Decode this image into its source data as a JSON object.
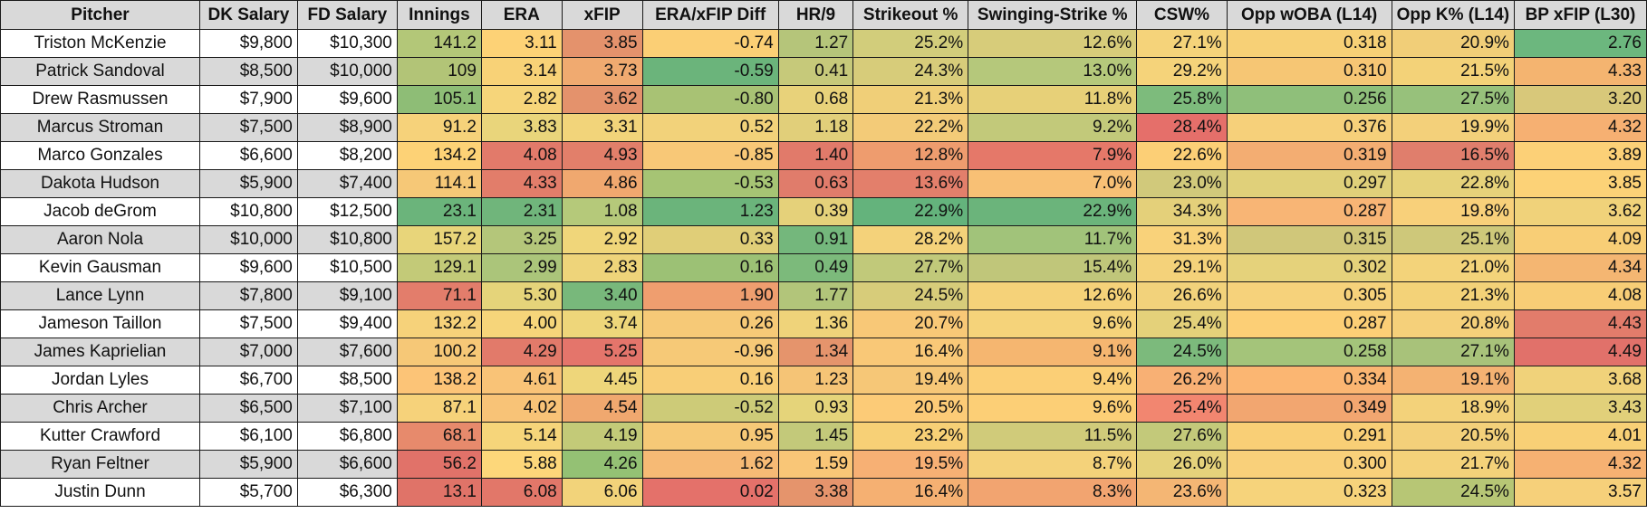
{
  "headers": [
    "Pitcher",
    "DK Salary",
    "FD Salary",
    "Innings",
    "ERA",
    "xFIP",
    "ERA/xFIP Diff",
    "HR/9",
    "Strikeout %",
    "Swinging-Strike %",
    "CSW%",
    "Opp wOBA (L14)",
    "Opp K% (L14)",
    "BP xFIP (L30)"
  ],
  "rows": [
    [
      "Triston McKenzie",
      "$9,800",
      "$10,300",
      "141.2",
      "3.11",
      "3.85",
      "-0.74",
      "1.27",
      "25.2%",
      "12.6%",
      "27.1%",
      "0.318",
      "20.9%",
      "2.76"
    ],
    [
      "Patrick Sandoval",
      "$8,500",
      "$10,000",
      "109",
      "3.14",
      "3.73",
      "-0.59",
      "0.41",
      "24.3%",
      "13.0%",
      "29.2%",
      "0.310",
      "21.5%",
      "4.33"
    ],
    [
      "Drew Rasmussen",
      "$7,900",
      "$9,600",
      "105.1",
      "2.82",
      "3.62",
      "-0.80",
      "0.68",
      "21.3%",
      "11.8%",
      "25.8%",
      "0.256",
      "27.5%",
      "3.20"
    ],
    [
      "Marcus Stroman",
      "$7,500",
      "$8,900",
      "91.2",
      "3.83",
      "3.31",
      "0.52",
      "1.18",
      "22.2%",
      "9.2%",
      "28.4%",
      "0.376",
      "19.9%",
      "4.32"
    ],
    [
      "Marco Gonzales",
      "$6,600",
      "$8,200",
      "134.2",
      "4.08",
      "4.93",
      "-0.85",
      "1.40",
      "12.8%",
      "7.9%",
      "22.6%",
      "0.319",
      "16.5%",
      "3.89"
    ],
    [
      "Dakota Hudson",
      "$5,900",
      "$7,400",
      "114.1",
      "4.33",
      "4.86",
      "-0.53",
      "0.63",
      "13.6%",
      "7.0%",
      "23.0%",
      "0.297",
      "22.8%",
      "3.85"
    ],
    [
      "Jacob deGrom",
      "$10,800",
      "$12,500",
      "23.1",
      "2.31",
      "1.08",
      "1.23",
      "0.39",
      "22.9%",
      "22.9%",
      "34.3%",
      "0.287",
      "19.8%",
      "3.62"
    ],
    [
      "Aaron Nola",
      "$10,000",
      "$10,800",
      "157.2",
      "3.25",
      "2.92",
      "0.33",
      "0.91",
      "28.2%",
      "11.7%",
      "31.3%",
      "0.315",
      "25.1%",
      "4.09"
    ],
    [
      "Kevin Gausman",
      "$9,600",
      "$10,500",
      "129.1",
      "2.99",
      "2.83",
      "0.16",
      "0.49",
      "27.7%",
      "15.4%",
      "29.1%",
      "0.302",
      "21.0%",
      "4.34"
    ],
    [
      "Lance Lynn",
      "$7,800",
      "$9,100",
      "71.1",
      "5.30",
      "3.40",
      "1.90",
      "1.77",
      "24.5%",
      "12.6%",
      "26.6%",
      "0.305",
      "21.3%",
      "4.08"
    ],
    [
      "Jameson Taillon",
      "$7,500",
      "$9,400",
      "132.2",
      "4.00",
      "3.74",
      "0.26",
      "1.36",
      "20.7%",
      "9.6%",
      "25.4%",
      "0.287",
      "20.8%",
      "4.43"
    ],
    [
      "James Kaprielian",
      "$7,000",
      "$7,600",
      "100.2",
      "4.29",
      "5.25",
      "-0.96",
      "1.34",
      "16.4%",
      "9.1%",
      "24.5%",
      "0.258",
      "27.1%",
      "4.49"
    ],
    [
      "Jordan Lyles",
      "$6,700",
      "$8,500",
      "138.2",
      "4.61",
      "4.45",
      "0.16",
      "1.23",
      "19.4%",
      "9.4%",
      "26.2%",
      "0.334",
      "19.1%",
      "3.68"
    ],
    [
      "Chris Archer",
      "$6,500",
      "$7,100",
      "87.1",
      "4.02",
      "4.54",
      "-0.52",
      "0.93",
      "20.5%",
      "9.6%",
      "25.4%",
      "0.349",
      "18.9%",
      "3.43"
    ],
    [
      "Kutter Crawford",
      "$6,100",
      "$6,800",
      "68.1",
      "5.14",
      "4.19",
      "0.95",
      "1.45",
      "23.2%",
      "11.5%",
      "27.6%",
      "0.291",
      "20.5%",
      "4.01"
    ],
    [
      "Ryan Feltner",
      "$5,900",
      "$6,600",
      "56.2",
      "5.88",
      "4.26",
      "1.62",
      "1.59",
      "19.5%",
      "8.7%",
      "26.0%",
      "0.300",
      "21.7%",
      "4.32"
    ],
    [
      "Justin Dunn",
      "$5,700",
      "$6,300",
      "13.1",
      "6.08",
      "6.06",
      "0.02",
      "3.38",
      "16.4%",
      "8.3%",
      "23.6%",
      "0.323",
      "24.5%",
      "3.57"
    ]
  ],
  "cell_colors": [
    [
      "#9ac576",
      "#b3c778",
      "#fdd276",
      "#e4926c",
      "#fbcf75",
      "#b5c57a",
      "#d2cd7b",
      "#d7cc7a",
      "#f5d37a",
      "#f7d076",
      "#f1ce78",
      "#6cb77e"
    ],
    [
      "#f3d77a",
      "#b2c477",
      "#f8d277",
      "#f0aa70",
      "#6bb47b",
      "#c6c97a",
      "#d7cc7a",
      "#b5c87b",
      "#f5d37a",
      "#f6c674",
      "#f3d278",
      "#f4b470"
    ],
    [
      "#f5d47a",
      "#8ebd76",
      "#f6d57a",
      "#e4926c",
      "#a8c274",
      "#e8d27a",
      "#f0cf78",
      "#e7d078",
      "#7dbb7c",
      "#8fbf7a",
      "#97c17b",
      "#d8c87a"
    ],
    [
      "#f6c977",
      "#f6d27a",
      "#e9d57b",
      "#f2d47a",
      "#f2d27a",
      "#e1cf7a",
      "#f3cb78",
      "#c2c97a",
      "#e56f6a",
      "#f6d07a",
      "#f3d07a",
      "#f6b072"
    ],
    [
      "#a8c672",
      "#fdd276",
      "#e27a6a",
      "#e27f6a",
      "#f8c877",
      "#e17a6a",
      "#ee9c6e",
      "#e57869",
      "#fccf76",
      "#f3ad72",
      "#e07e6c",
      "#fcd077"
    ],
    [
      "#d7cb79",
      "#f6c877",
      "#e27d6a",
      "#f0a86f",
      "#a6c474",
      "#e07c6b",
      "#e37f6b",
      "#f8c075",
      "#d1c97b",
      "#e0d07a",
      "#e6d27a",
      "#fcd277"
    ],
    [
      "#e78c6c",
      "#6bb47b",
      "#70b57b",
      "#b5c97a",
      "#6bb47b",
      "#e5d17a",
      "#64b37c",
      "#6bb47b",
      "#e4d07a",
      "#f8b575",
      "#f8d07a",
      "#f0d27a"
    ],
    [
      "#6db57b",
      "#e8d57a",
      "#b4c67a",
      "#f0d67a",
      "#e0ce78",
      "#74b77c",
      "#f4d27a",
      "#a1c37a",
      "#f9d27a",
      "#d0c77a",
      "#cec87a",
      "#f8ce76"
    ],
    [
      "#9ec576",
      "#c3ca78",
      "#abc57a",
      "#eed47a",
      "#9cc175",
      "#7cba7b",
      "#c1c97a",
      "#c0c67a",
      "#f4d27a",
      "#e5d27b",
      "#f3d37a",
      "#f4b672"
    ],
    [
      "#f3ab71",
      "#e37d6b",
      "#e5d47a",
      "#78b87b",
      "#ef9e6f",
      "#b2c57a",
      "#d7cc7a",
      "#f5d279",
      "#f2d27b",
      "#f6d27b",
      "#f3d278",
      "#f8cd76"
    ],
    [
      "#a8c672",
      "#f6d27a",
      "#f6d57a",
      "#eed67a",
      "#f6c977",
      "#efd37a",
      "#f8c877",
      "#f5d37a",
      "#e4d17a",
      "#fccf76",
      "#f5d07a",
      "#e27c6b"
    ],
    [
      "#f8cf76",
      "#f6c877",
      "#e27a6a",
      "#e4756b",
      "#f6c977",
      "#e5946c",
      "#f9c877",
      "#f5b670",
      "#7cba7c",
      "#a4c47a",
      "#a8c27a",
      "#e1716a"
    ],
    [
      "#a1c574",
      "#fcc477",
      "#f9c377",
      "#eed67a",
      "#f8ce77",
      "#f5c476",
      "#f6c777",
      "#fbcf76",
      "#f8b074",
      "#fbb672",
      "#f4b272",
      "#f0d27a"
    ],
    [
      "#f8c876",
      "#f6d27a",
      "#f8c377",
      "#f0a86f",
      "#cdcb78",
      "#e5d47a",
      "#fccb77",
      "#fccf76",
      "#f28670",
      "#f2a670",
      "#f3d27a",
      "#e1d07a"
    ],
    [
      "#f3ad72",
      "#e78a6c",
      "#f6d57a",
      "#c3ca78",
      "#f6c977",
      "#c3c97a",
      "#f7d076",
      "#d0cb7a",
      "#c3c97a",
      "#f9cf76",
      "#f3d07a",
      "#f8d076"
    ],
    [
      "#f3a870",
      "#e17269",
      "#fdd77a",
      "#94c174",
      "#f6ba75",
      "#f9c677",
      "#f7b074",
      "#f4d27a",
      "#e5d27b",
      "#f9d07a",
      "#f4d27a",
      "#f6b172"
    ],
    [
      "#e27e6a",
      "#e07368",
      "#e27769",
      "#f2d37a",
      "#e4716a",
      "#e5946c",
      "#f5b072",
      "#f2a470",
      "#f4b674",
      "#f6d37b",
      "#b7c675",
      "#f6d07a"
    ]
  ]
}
